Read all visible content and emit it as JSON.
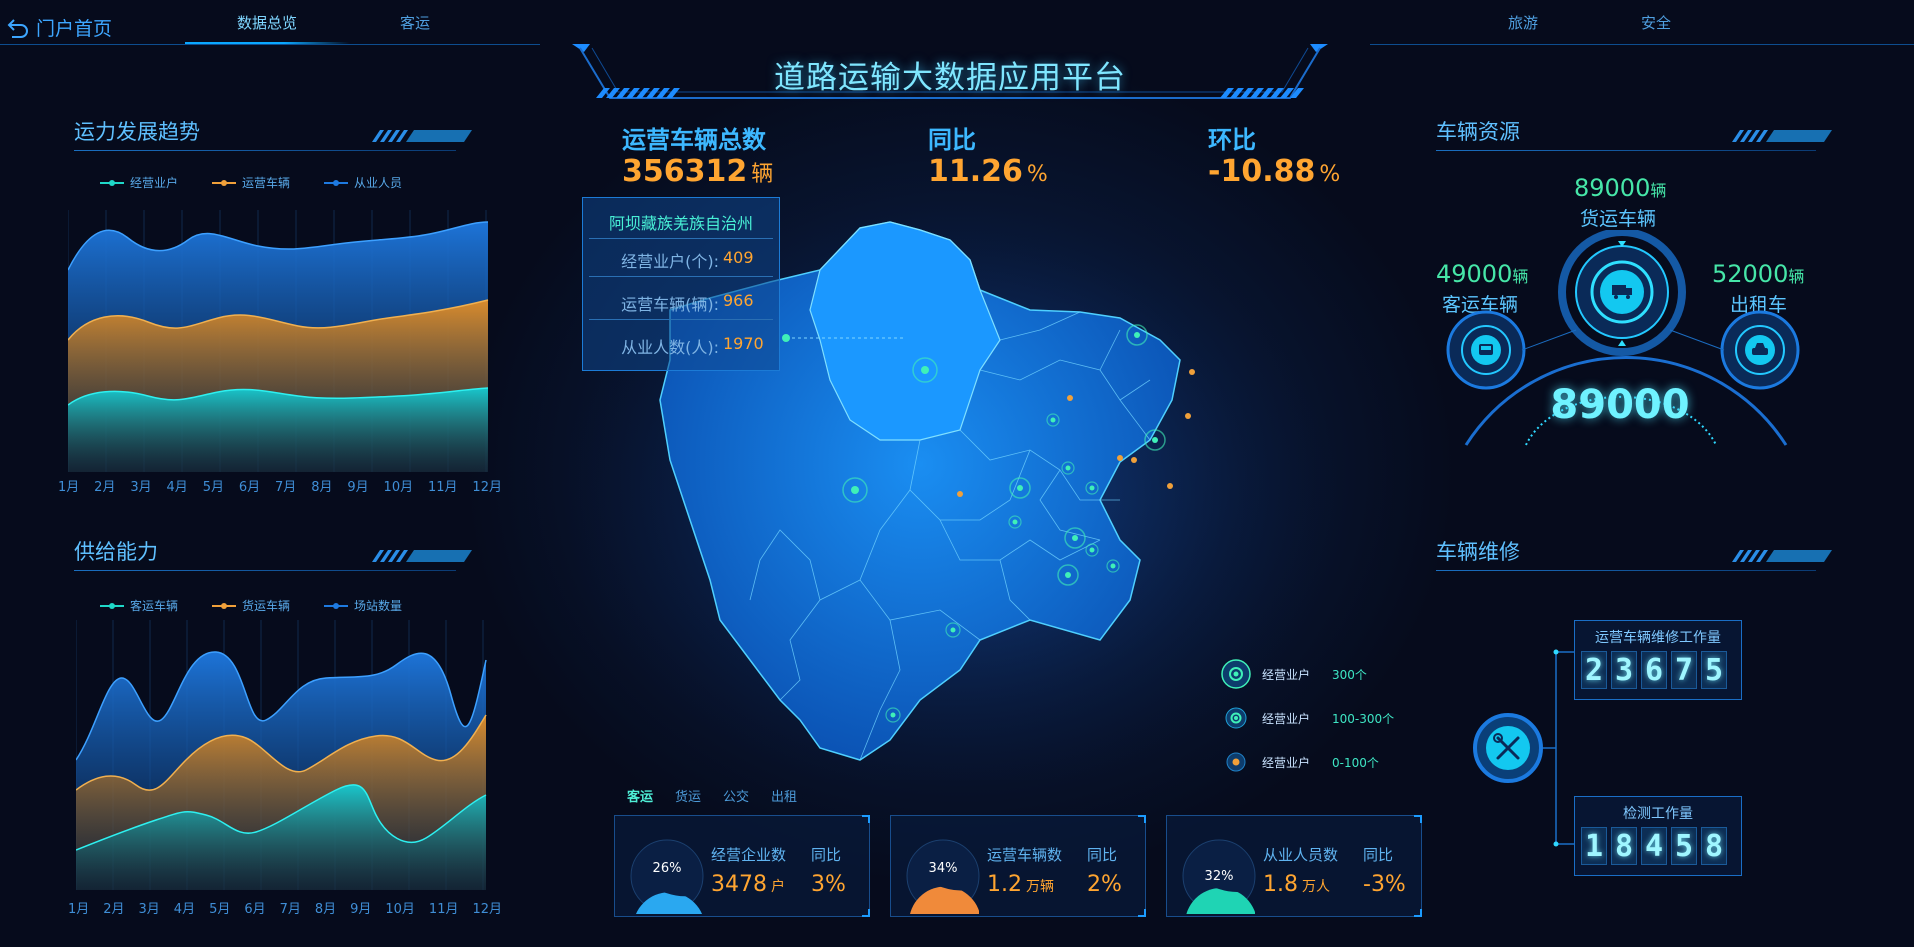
{
  "nav": {
    "home_label": "门户首页",
    "tabs": [
      "数据总览",
      "客运",
      "旅游",
      "安全"
    ],
    "active_tab": "数据总览"
  },
  "title": "道路运输大数据应用平台",
  "kpis": [
    {
      "label": "运营车辆总数",
      "value": "356312",
      "unit": "辆"
    },
    {
      "label": "同比",
      "value": "11.26",
      "unit": "%"
    },
    {
      "label": "环比",
      "value": "-10.88",
      "unit": "%"
    }
  ],
  "capacity_trend": {
    "title": "运力发展趋势",
    "legend": [
      "经营业户",
      "运营车辆",
      "从业人员"
    ],
    "months": [
      "1月",
      "2月",
      "3月",
      "4月",
      "5月",
      "6月",
      "7月",
      "8月",
      "9月",
      "10月",
      "11月",
      "12月"
    ]
  },
  "supply": {
    "title": "供给能力",
    "legend": [
      "客运车辆",
      "货运车辆",
      "场站数量"
    ],
    "months": [
      "1月",
      "2月",
      "3月",
      "4月",
      "5月",
      "6月",
      "7月",
      "8月",
      "9月",
      "10月",
      "11月",
      "12月"
    ]
  },
  "tooltip": {
    "region": "阿坝藏族羌族自治州",
    "rows": [
      {
        "label": "经营业户(个):",
        "value": "409"
      },
      {
        "label": "运营车辆(辆):",
        "value": "966"
      },
      {
        "label": "从业人数(人):",
        "value": "1970"
      }
    ]
  },
  "map_legend": [
    {
      "label": "经营业户",
      "range": "300个"
    },
    {
      "label": "经营业户",
      "range": "100-300个"
    },
    {
      "label": "经营业户",
      "range": "0-100个"
    }
  ],
  "bottom_tabs": [
    "客运",
    "货运",
    "公交",
    "出租"
  ],
  "bottom_active": "客运",
  "cards": [
    {
      "pct": "26%",
      "label": "经营企业数",
      "yoy_label": "同比",
      "value": "3478",
      "unit": "户",
      "yoy": "3%",
      "color": "#2aa8f0",
      "level": 0.26
    },
    {
      "pct": "34%",
      "label": "运营车辆数",
      "yoy_label": "同比",
      "value": "1.2",
      "unit": "万辆",
      "yoy": "2%",
      "color": "#f08a3a",
      "level": 0.34
    },
    {
      "pct": "32%",
      "label": "从业人员数",
      "yoy_label": "同比",
      "value": "1.8",
      "unit": "万人",
      "yoy": "-3%",
      "color": "#1fd4b4",
      "level": 0.32
    }
  ],
  "vehicle_resource": {
    "title": "车辆资源",
    "cargo": {
      "value": "89000",
      "unit": "辆",
      "name": "货运车辆"
    },
    "passenger": {
      "value": "49000",
      "unit": "辆",
      "name": "客运车辆"
    },
    "taxi": {
      "value": "52000",
      "unit": "辆",
      "name": "出租车"
    },
    "total": "89000"
  },
  "maintenance": {
    "title": "车辆维修",
    "repair": {
      "title": "运营车辆维修工作量",
      "digits": [
        "2",
        "3",
        "6",
        "7",
        "5"
      ]
    },
    "inspect": {
      "title": "检测工作量",
      "digits": [
        "1",
        "8",
        "4",
        "5",
        "8"
      ]
    }
  }
}
